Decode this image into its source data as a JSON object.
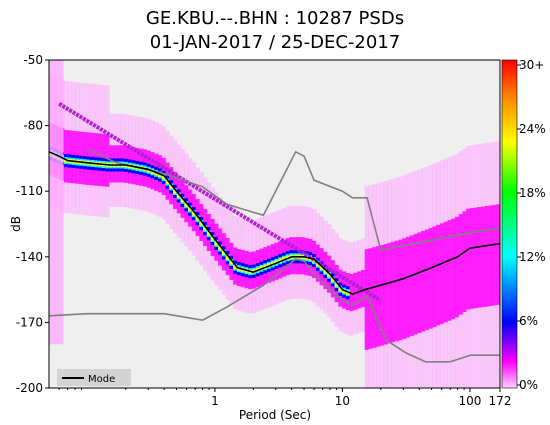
{
  "chart_data": {
    "type": "heatmap",
    "title_line1": "GE.KBU.--.BHN : 10287 PSDs",
    "title_line2": "01-JAN-2017 / 25-DEC-2017",
    "xlabel": "Period (Sec)",
    "ylabel": "dB",
    "x_scale": "log",
    "xlim": [
      0.05,
      172
    ],
    "ylim": [
      -200,
      -50
    ],
    "x_ticks": [
      {
        "value": 1,
        "label": "1"
      },
      {
        "value": 10,
        "label": "10"
      },
      {
        "value": 100,
        "label": "100"
      },
      {
        "value": 172,
        "label": "172"
      }
    ],
    "y_ticks": [
      {
        "value": -50,
        "label": "-50"
      },
      {
        "value": -80,
        "label": "-80"
      },
      {
        "value": -110,
        "label": "-110"
      },
      {
        "value": -140,
        "label": "-140"
      },
      {
        "value": -170,
        "label": "-170"
      },
      {
        "value": -200,
        "label": "-200"
      }
    ],
    "colorbar": {
      "labels": [
        "30+",
        "24%",
        "18%",
        "12%",
        "6%",
        "0%"
      ],
      "colors": [
        "#ff0000",
        "#ff8c00",
        "#ffff00",
        "#00ff00",
        "#00ffff",
        "#0000ff",
        "#ff00ff",
        "#ffd0ff"
      ]
    },
    "legend": {
      "position": "bottom-left",
      "entries": [
        {
          "name": "Mode",
          "color": "#000000"
        }
      ]
    },
    "mode_curve": {
      "x": [
        0.05,
        0.06,
        0.07,
        0.1,
        0.15,
        0.2,
        0.3,
        0.4,
        0.5,
        0.7,
        1.0,
        1.5,
        2.0,
        3.0,
        4.0,
        5.0,
        6.0,
        8.0,
        10,
        12,
        15,
        20,
        30,
        50,
        80,
        100,
        172
      ],
      "y": [
        -92,
        -94,
        -96,
        -97,
        -98,
        -98,
        -100,
        -103,
        -110,
        -120,
        -132,
        -145,
        -147,
        -143,
        -140,
        -140,
        -141,
        -148,
        -155,
        -157,
        -155,
        -153,
        -150,
        -145,
        -140,
        -136,
        -134
      ]
    },
    "nhnm": {
      "x": [
        0.1,
        0.17,
        0.4,
        0.8,
        1.24,
        2.4,
        4.3,
        5.0,
        6.0,
        10,
        12,
        15.6,
        20,
        100,
        172
      ],
      "y": [
        -91,
        -97,
        -102,
        -108,
        -116,
        -121,
        -92,
        -94,
        -105,
        -110,
        -113,
        -113,
        -137,
        -129,
        -127
      ]
    },
    "nlnm": {
      "x": [
        0.05,
        0.1,
        0.17,
        0.4,
        0.8,
        1.24,
        2.4,
        4.3,
        5.0,
        6.0,
        10,
        12,
        15.6,
        21.9,
        31.6,
        45,
        70,
        101,
        154,
        172
      ],
      "y": [
        -167,
        -166,
        -166,
        -166,
        -169,
        -163,
        -153,
        -141,
        -142,
        -148,
        -160,
        -162,
        -158,
        -178,
        -184,
        -188,
        -188,
        -185,
        -185,
        -185
      ]
    },
    "background": "#efefef",
    "density_colors": {
      "dense": "#ff00ff",
      "sparse": "#ffaaff"
    }
  }
}
